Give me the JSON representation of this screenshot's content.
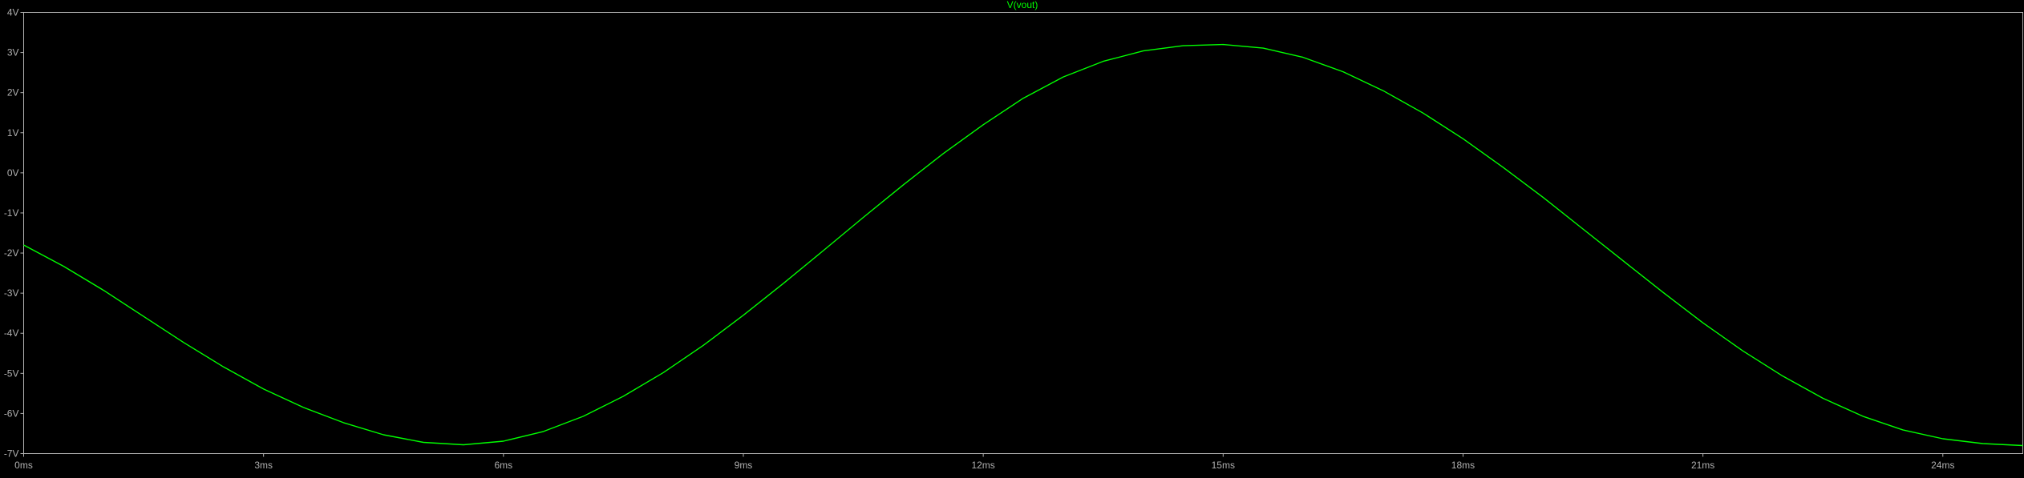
{
  "chart_data": {
    "type": "line",
    "title": "V(vout)",
    "xlim": [
      0,
      25
    ],
    "ylim": [
      -7,
      4
    ],
    "x_ticks": [
      {
        "value": 0,
        "label": "0ms"
      },
      {
        "value": 3,
        "label": "3ms"
      },
      {
        "value": 6,
        "label": "6ms"
      },
      {
        "value": 9,
        "label": "9ms"
      },
      {
        "value": 12,
        "label": "12ms"
      },
      {
        "value": 15,
        "label": "15ms"
      },
      {
        "value": 18,
        "label": "18ms"
      },
      {
        "value": 21,
        "label": "21ms"
      },
      {
        "value": 24,
        "label": "24ms"
      }
    ],
    "y_ticks": [
      {
        "value": 4,
        "label": "4V"
      },
      {
        "value": 3,
        "label": "3V"
      },
      {
        "value": 2,
        "label": "2V"
      },
      {
        "value": 1,
        "label": "1V"
      },
      {
        "value": 0,
        "label": "0V"
      },
      {
        "value": -1,
        "label": "-1V"
      },
      {
        "value": -2,
        "label": "-2V"
      },
      {
        "value": -3,
        "label": "-3V"
      },
      {
        "value": -4,
        "label": "-4V"
      },
      {
        "value": -5,
        "label": "-5V"
      },
      {
        "value": -6,
        "label": "-6V"
      },
      {
        "value": -7,
        "label": "-7V"
      }
    ],
    "series": [
      {
        "name": "V(vout)",
        "color": "#00ff00",
        "x": [
          0,
          0.5,
          1,
          1.5,
          2,
          2.5,
          3,
          3.5,
          4,
          4.5,
          5,
          5.5,
          6,
          6.5,
          7,
          7.5,
          8,
          8.5,
          9,
          9.5,
          10,
          10.5,
          11,
          11.5,
          12,
          12.5,
          13,
          13.5,
          14,
          14.5,
          15,
          15.5,
          16,
          16.5,
          17,
          17.5,
          18,
          18.5,
          19,
          19.5,
          20,
          20.5,
          21,
          21.5,
          22,
          22.5,
          23,
          23.5,
          24,
          24.5,
          25
        ],
        "y": [
          -1.8,
          -2.33,
          -2.93,
          -3.58,
          -4.23,
          -4.84,
          -5.39,
          -5.85,
          -6.23,
          -6.53,
          -6.72,
          -6.78,
          -6.69,
          -6.45,
          -6.07,
          -5.57,
          -4.98,
          -4.3,
          -3.55,
          -2.76,
          -1.94,
          -1.11,
          -0.3,
          0.48,
          1.2,
          1.86,
          2.39,
          2.78,
          3.04,
          3.17,
          3.2,
          3.11,
          2.88,
          2.52,
          2.05,
          1.49,
          0.85,
          0.14,
          -0.61,
          -1.4,
          -2.19,
          -2.98,
          -3.74,
          -4.44,
          -5.07,
          -5.62,
          -6.07,
          -6.41,
          -6.63,
          -6.75,
          -6.8
        ]
      }
    ]
  }
}
